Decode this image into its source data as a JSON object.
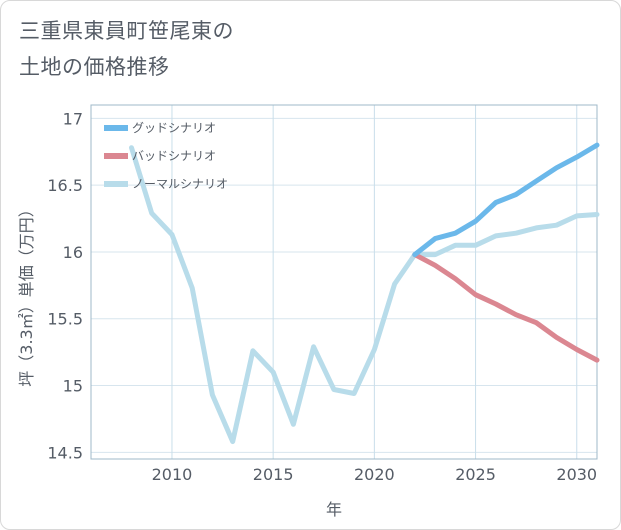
{
  "title": {
    "line1": "三重県東員町笹尾東の",
    "line2": "土地の価格推移"
  },
  "chart_data": {
    "type": "line",
    "title": "三重県東員町笹尾東の土地の価格推移",
    "xlabel": "年",
    "ylabel": "坪（3.3㎡）単価（万円）",
    "xlim": [
      2006,
      2031
    ],
    "ylim": [
      14.45,
      17.1
    ],
    "xticks": [
      2010,
      2015,
      2020,
      2025,
      2030
    ],
    "yticks": [
      14.5,
      15,
      15.5,
      16,
      16.5,
      17
    ],
    "ytick_labels": [
      "14.5",
      "15",
      "15.5",
      "16",
      "16.5",
      "17"
    ],
    "grid": true,
    "legend_position": "top-left",
    "series": [
      {
        "name": "グッドシナリオ",
        "color": "#6bb8ea",
        "x": [
          2022,
          2023,
          2024,
          2025,
          2026,
          2027,
          2028,
          2029,
          2030,
          2031
        ],
        "y": [
          15.98,
          16.1,
          16.14,
          16.23,
          16.37,
          16.43,
          16.53,
          16.63,
          16.71,
          16.8
        ]
      },
      {
        "name": "バッドシナリオ",
        "color": "#db8791",
        "x": [
          2022,
          2023,
          2024,
          2025,
          2026,
          2027,
          2028,
          2029,
          2030,
          2031
        ],
        "y": [
          15.98,
          15.9,
          15.8,
          15.68,
          15.61,
          15.53,
          15.47,
          15.36,
          15.27,
          15.19
        ]
      },
      {
        "name": "ノーマルシナリオ",
        "color": "#b8dcea",
        "x": [
          2008,
          2009,
          2010,
          2011,
          2012,
          2013,
          2014,
          2015,
          2016,
          2017,
          2018,
          2019,
          2020,
          2021,
          2022,
          2023,
          2024,
          2025,
          2026,
          2027,
          2028,
          2029,
          2030,
          2031
        ],
        "y": [
          16.78,
          16.29,
          16.13,
          15.73,
          14.93,
          14.58,
          15.26,
          15.1,
          14.71,
          15.29,
          14.97,
          14.94,
          15.27,
          15.76,
          15.98,
          15.98,
          16.05,
          16.05,
          16.12,
          16.14,
          16.18,
          16.2,
          16.27,
          16.28
        ]
      }
    ]
  }
}
